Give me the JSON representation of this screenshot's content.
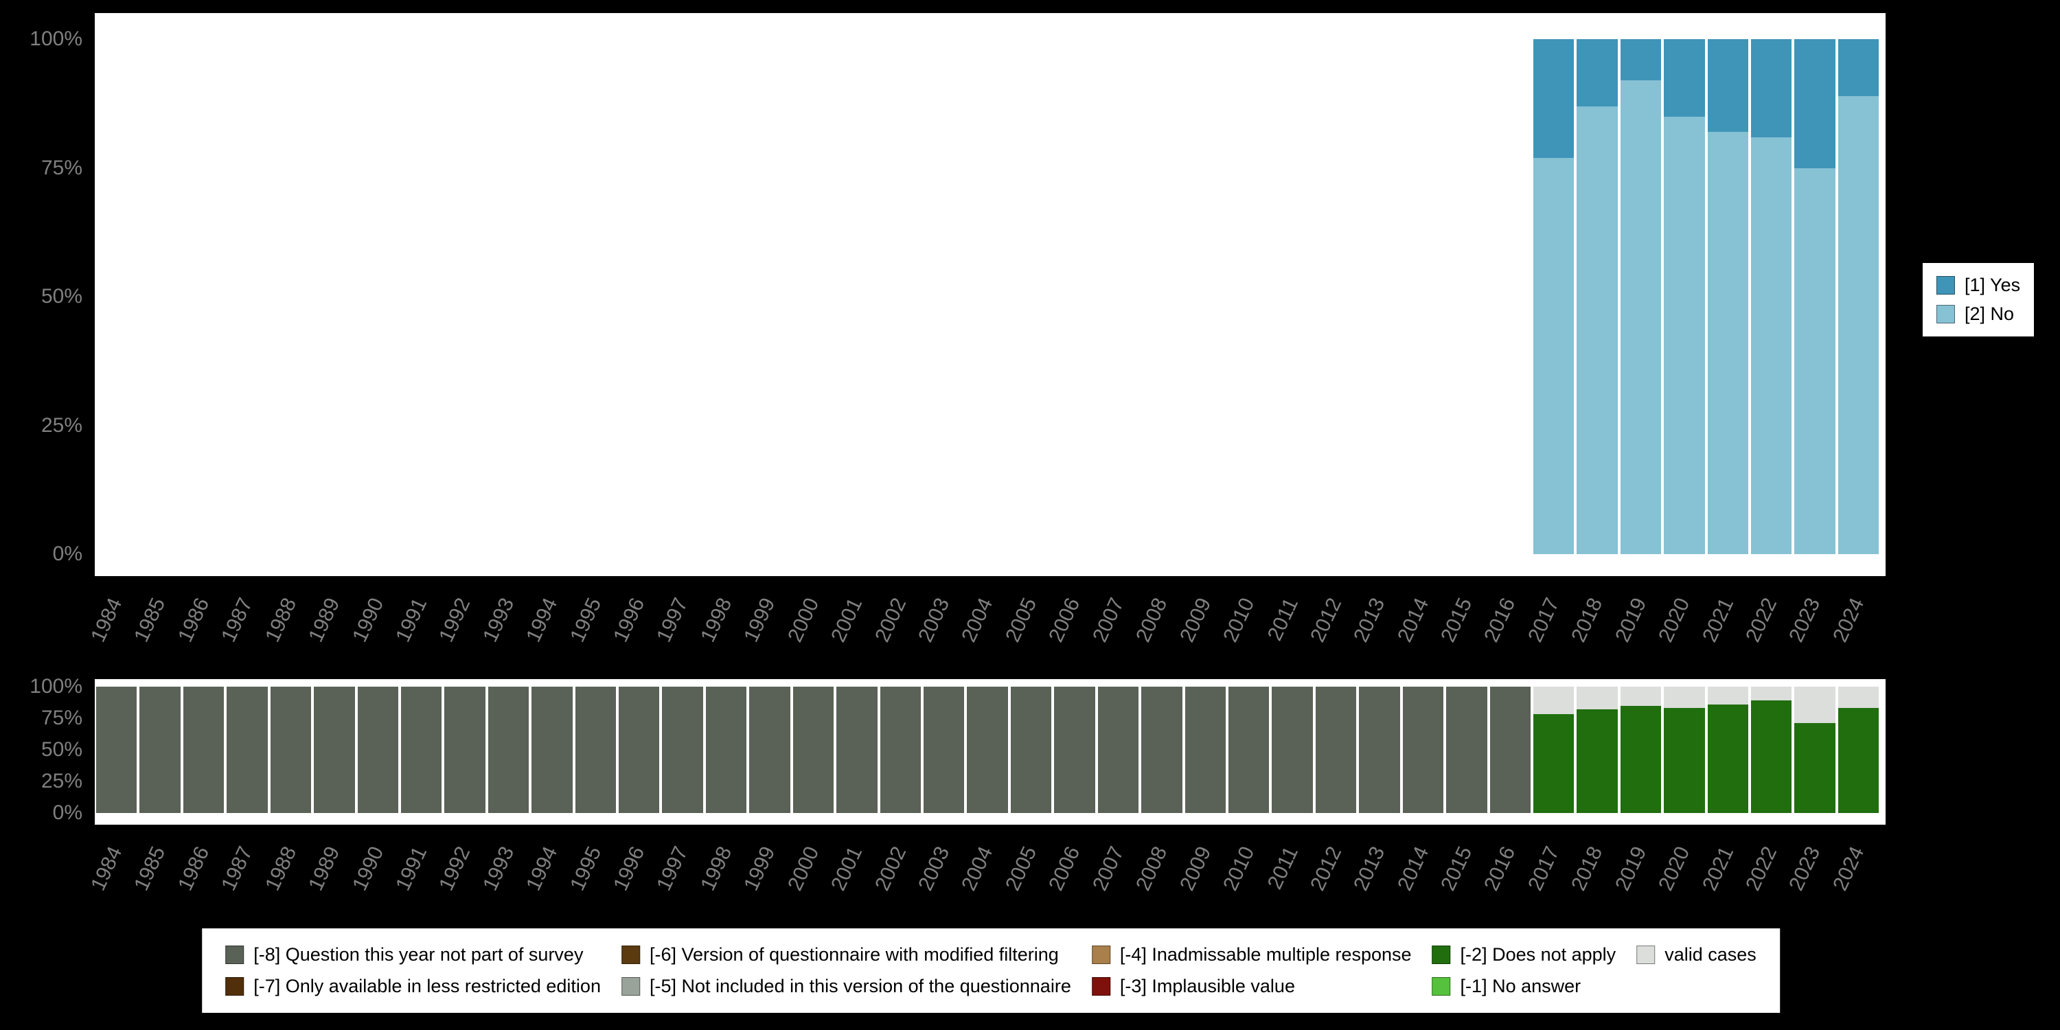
{
  "colors": {
    "background": "#000000",
    "panel_background": "#ffffff",
    "axis_text": "#808080",
    "legend_background": "#ffffff",
    "legend_text": "#000000"
  },
  "legend_right": {
    "items": [
      {
        "label": "[1] Yes",
        "color": "#3e95b8"
      },
      {
        "label": "[2] No",
        "color": "#87c1d4"
      }
    ]
  },
  "legend_bottom": {
    "items": [
      {
        "label": "[-8] Question this year not part of survey",
        "color": "#5a6257"
      },
      {
        "label": "[-7] Only available in less restricted edition",
        "color": "#512f0b"
      },
      {
        "label": "[-6] Version of questionnaire with modified filtering",
        "color": "#5b3a10"
      },
      {
        "label": "[-5] Not included in this version of the questionnaire",
        "color": "#99a39a"
      },
      {
        "label": "[-4] Inadmissable multiple response",
        "color": "#a97f4c"
      },
      {
        "label": "[-3] Implausible value",
        "color": "#7e110b"
      },
      {
        "label": "[-2] Does not apply",
        "color": "#216e0f"
      },
      {
        "label": "[-1] No answer",
        "color": "#55c13c"
      },
      {
        "label": "valid cases",
        "color": "#dbdedb"
      }
    ]
  },
  "chart_data": [
    {
      "type": "bar",
      "stacked": true,
      "stack_order": "top-to-bottom",
      "title": "",
      "xlabel": "",
      "ylabel": "",
      "ylim": [
        0,
        100
      ],
      "grid": false,
      "legend_position": "right",
      "categories": [
        "1984",
        "1985",
        "1986",
        "1987",
        "1988",
        "1989",
        "1990",
        "1991",
        "1992",
        "1993",
        "1994",
        "1995",
        "1996",
        "1997",
        "1998",
        "1999",
        "2000",
        "2001",
        "2002",
        "2003",
        "2004",
        "2005",
        "2006",
        "2007",
        "2008",
        "2009",
        "2010",
        "2011",
        "2012",
        "2013",
        "2014",
        "2015",
        "2016",
        "2017",
        "2018",
        "2019",
        "2020",
        "2021",
        "2022",
        "2023",
        "2024"
      ],
      "yticks": [
        {
          "label": "100%",
          "value": 100
        },
        {
          "label": "75%",
          "value": 75
        },
        {
          "label": "50%",
          "value": 50
        },
        {
          "label": "25%",
          "value": 25
        },
        {
          "label": "0%",
          "value": 0
        }
      ],
      "series": [
        {
          "name": "[1] Yes",
          "color": "#3e95b8",
          "values": [
            null,
            null,
            null,
            null,
            null,
            null,
            null,
            null,
            null,
            null,
            null,
            null,
            null,
            null,
            null,
            null,
            null,
            null,
            null,
            null,
            null,
            null,
            null,
            null,
            null,
            null,
            null,
            null,
            null,
            null,
            null,
            null,
            null,
            23,
            13,
            8,
            15,
            18,
            19,
            25,
            11
          ]
        },
        {
          "name": "[2] No",
          "color": "#87c1d4",
          "values": [
            null,
            null,
            null,
            null,
            null,
            null,
            null,
            null,
            null,
            null,
            null,
            null,
            null,
            null,
            null,
            null,
            null,
            null,
            null,
            null,
            null,
            null,
            null,
            null,
            null,
            null,
            null,
            null,
            null,
            null,
            null,
            null,
            null,
            77,
            87,
            92,
            85,
            82,
            81,
            75,
            89
          ]
        }
      ]
    },
    {
      "type": "bar",
      "stacked": true,
      "stack_order": "top-to-bottom",
      "title": "",
      "xlabel": "",
      "ylabel": "",
      "ylim": [
        0,
        100
      ],
      "grid": false,
      "legend_position": "bottom",
      "categories": [
        "1984",
        "1985",
        "1986",
        "1987",
        "1988",
        "1989",
        "1990",
        "1991",
        "1992",
        "1993",
        "1994",
        "1995",
        "1996",
        "1997",
        "1998",
        "1999",
        "2000",
        "2001",
        "2002",
        "2003",
        "2004",
        "2005",
        "2006",
        "2007",
        "2008",
        "2009",
        "2010",
        "2011",
        "2012",
        "2013",
        "2014",
        "2015",
        "2016",
        "2017",
        "2018",
        "2019",
        "2020",
        "2021",
        "2022",
        "2023",
        "2024"
      ],
      "yticks": [
        {
          "label": "100%",
          "value": 100
        },
        {
          "label": "75%",
          "value": 75
        },
        {
          "label": "50%",
          "value": 50
        },
        {
          "label": "25%",
          "value": 25
        },
        {
          "label": "0%",
          "value": 0
        }
      ],
      "series": [
        {
          "name": "valid cases",
          "color": "#dbdedb",
          "values": [
            null,
            null,
            null,
            null,
            null,
            null,
            null,
            null,
            null,
            null,
            null,
            null,
            null,
            null,
            null,
            null,
            null,
            null,
            null,
            null,
            null,
            null,
            null,
            null,
            null,
            null,
            null,
            null,
            null,
            null,
            null,
            null,
            null,
            22,
            18,
            15,
            17,
            14,
            11,
            29,
            17
          ]
        },
        {
          "name": "[-2] Does not apply",
          "color": "#216e0f",
          "values": [
            null,
            null,
            null,
            null,
            null,
            null,
            null,
            null,
            null,
            null,
            null,
            null,
            null,
            null,
            null,
            null,
            null,
            null,
            null,
            null,
            null,
            null,
            null,
            null,
            null,
            null,
            null,
            null,
            null,
            null,
            null,
            null,
            null,
            78,
            82,
            85,
            83,
            86,
            89,
            71,
            83
          ]
        },
        {
          "name": "[-8] Question this year not part of survey",
          "color": "#5a6257",
          "values": [
            100,
            100,
            100,
            100,
            100,
            100,
            100,
            100,
            100,
            100,
            100,
            100,
            100,
            100,
            100,
            100,
            100,
            100,
            100,
            100,
            100,
            100,
            100,
            100,
            100,
            100,
            100,
            100,
            100,
            100,
            100,
            100,
            100,
            null,
            null,
            null,
            null,
            null,
            null,
            null,
            null
          ]
        }
      ]
    }
  ]
}
